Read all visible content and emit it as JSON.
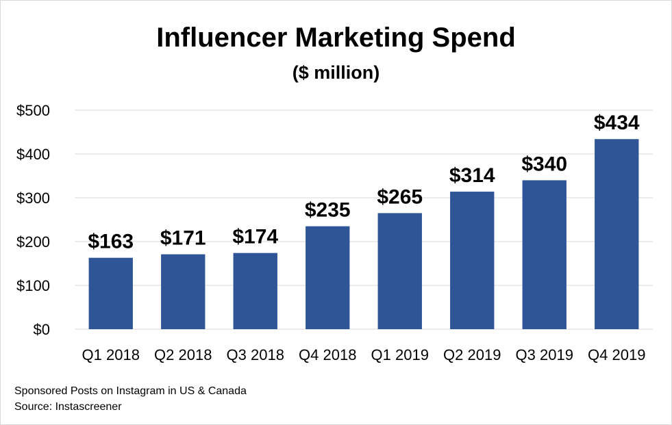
{
  "chart_data": {
    "type": "bar",
    "title": "Influencer Marketing Spend",
    "subtitle": "($ million)",
    "categories": [
      "Q1 2018",
      "Q2 2018",
      "Q3 2018",
      "Q4 2018",
      "Q1 2019",
      "Q2 2019",
      "Q3 2019",
      "Q4 2019"
    ],
    "values": [
      163,
      171,
      174,
      235,
      265,
      314,
      340,
      434
    ],
    "data_labels": [
      "$163",
      "$171",
      "$174",
      "$235",
      "$265",
      "$314",
      "$340",
      "$434"
    ],
    "yticks": [
      0,
      100,
      200,
      300,
      400,
      500
    ],
    "ytick_labels": [
      "$0",
      "$100",
      "$200",
      "$300",
      "$400",
      "$500"
    ],
    "ylim": [
      0,
      500
    ],
    "grid": true,
    "bar_color": "#2f5597",
    "xlabel": "",
    "ylabel": ""
  },
  "footer": {
    "note": "Sponsored Posts on Instagram in US & Canada",
    "source": "Source: Instascreener"
  }
}
